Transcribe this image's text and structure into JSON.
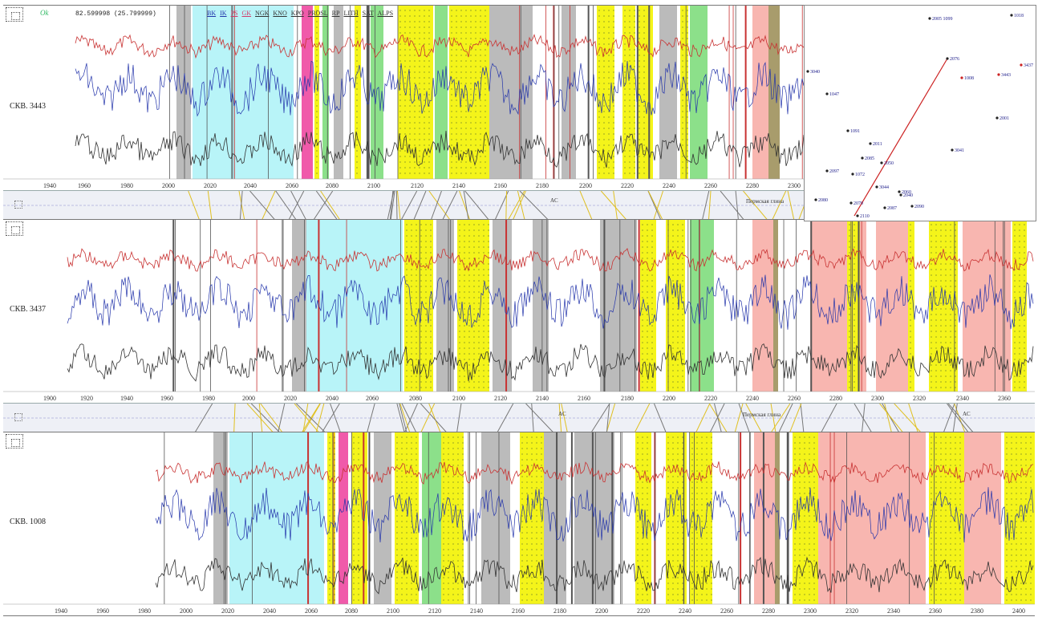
{
  "header": {
    "readout": "82.599998 (25.799999)",
    "logo": "Ok",
    "tabs": [
      "BK",
      "IK",
      "PS",
      "GK",
      "NGK",
      "KNO",
      "KPO",
      "PROSL",
      "RP",
      "LITH",
      "SAT",
      "ALPS"
    ]
  },
  "wells": [
    {
      "name": "СКВ. 3443",
      "depth_ticks": [
        "1940",
        "1960",
        "1980",
        "2000",
        "2020",
        "2040",
        "2060",
        "2080",
        "2100",
        "2120",
        "2140",
        "2160",
        "2180",
        "2200",
        "2220",
        "2240",
        "2260",
        "2280",
        "2300"
      ]
    },
    {
      "name": "СКВ. 3437",
      "depth_ticks": [
        "1900",
        "1920",
        "1940",
        "1960",
        "1980",
        "2000",
        "2020",
        "2040",
        "2060",
        "2080",
        "2100",
        "2120",
        "2140",
        "2160",
        "2180",
        "2200",
        "2220",
        "2240",
        "2260",
        "2280",
        "2300",
        "2320",
        "2340",
        "2360"
      ]
    },
    {
      "name": "СКВ. 1008",
      "depth_ticks": [
        "1940",
        "1960",
        "1980",
        "2000",
        "2020",
        "2040",
        "2060",
        "2080",
        "2100",
        "2120",
        "2140",
        "2160",
        "2180",
        "2200",
        "2220",
        "2240",
        "2260",
        "2280",
        "2300",
        "2320",
        "2340",
        "2360",
        "2380",
        "2400"
      ]
    }
  ],
  "correlation": [
    {
      "label_ac": "AC",
      "label_horizon": "Пермская глина"
    },
    {
      "label_ac": "AC",
      "label_horizon": "Пермская глина",
      "label_right": "AC"
    }
  ],
  "map": {
    "wells": [
      "2005 1099",
      "1018",
      "2076",
      "1008",
      "3443",
      "3040",
      "1047",
      "3437",
      "2001",
      "1091",
      "2011",
      "2050",
      "2085",
      "2097",
      "1072",
      "3044",
      "2060",
      "2080",
      "2070",
      "2087",
      "2090",
      "2110",
      "2040",
      "3041"
    ]
  },
  "colors": {
    "yellow": "#f4f41a",
    "cyan": "#b8f4f8",
    "gray": "#bbbbbb",
    "pink": "#f8b6b0",
    "olive": "#a89c6c",
    "magenta": "#f05aaa",
    "green": "#8ce08a",
    "curve_red": "#c83232",
    "curve_blue": "#2233aa",
    "curve_black": "#333333"
  }
}
